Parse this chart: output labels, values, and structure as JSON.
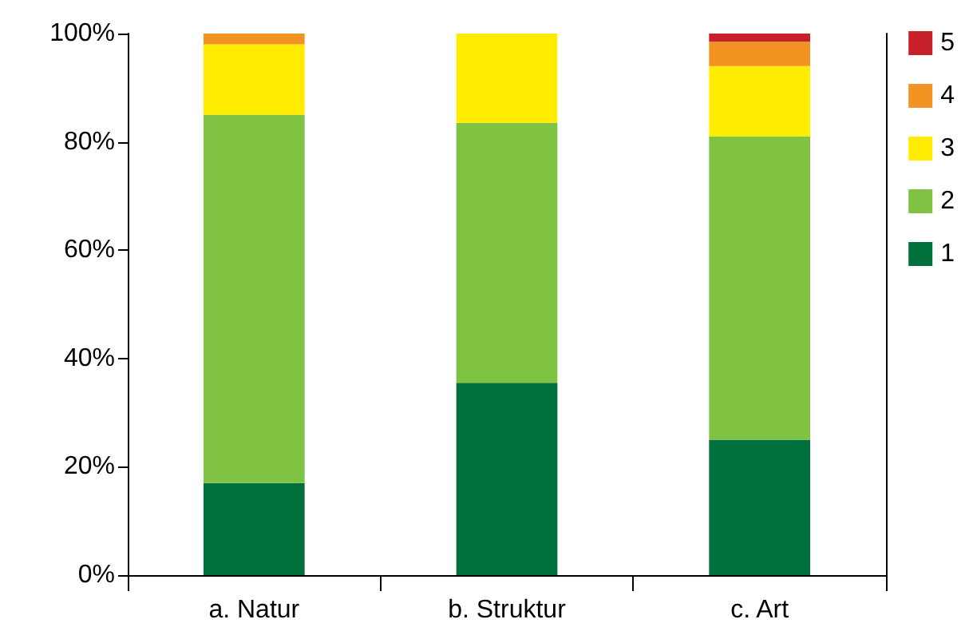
{
  "chart_data": {
    "type": "bar",
    "stacked": true,
    "categories": [
      "a. Natur",
      "b. Struktur",
      "c. Art"
    ],
    "series": [
      {
        "name": "1",
        "color": "#00703c",
        "values": [
          17,
          35.5,
          25
        ]
      },
      {
        "name": "2",
        "color": "#80c241",
        "values": [
          68,
          48,
          56
        ]
      },
      {
        "name": "3",
        "color": "#ffec00",
        "values": [
          13,
          16.5,
          13
        ]
      },
      {
        "name": "4",
        "color": "#f39422",
        "values": [
          2,
          0,
          4.5
        ]
      },
      {
        "name": "5",
        "color": "#c7202a",
        "values": [
          0,
          0,
          1.5
        ]
      }
    ],
    "ylim": [
      0,
      100
    ],
    "yticks": [
      {
        "value": 0,
        "label": "0%"
      },
      {
        "value": 20,
        "label": "20%"
      },
      {
        "value": 40,
        "label": "40%"
      },
      {
        "value": 60,
        "label": "60%"
      },
      {
        "value": 80,
        "label": "80%"
      },
      {
        "value": 100,
        "label": "100%"
      }
    ],
    "grid": false,
    "legend": "top right"
  }
}
